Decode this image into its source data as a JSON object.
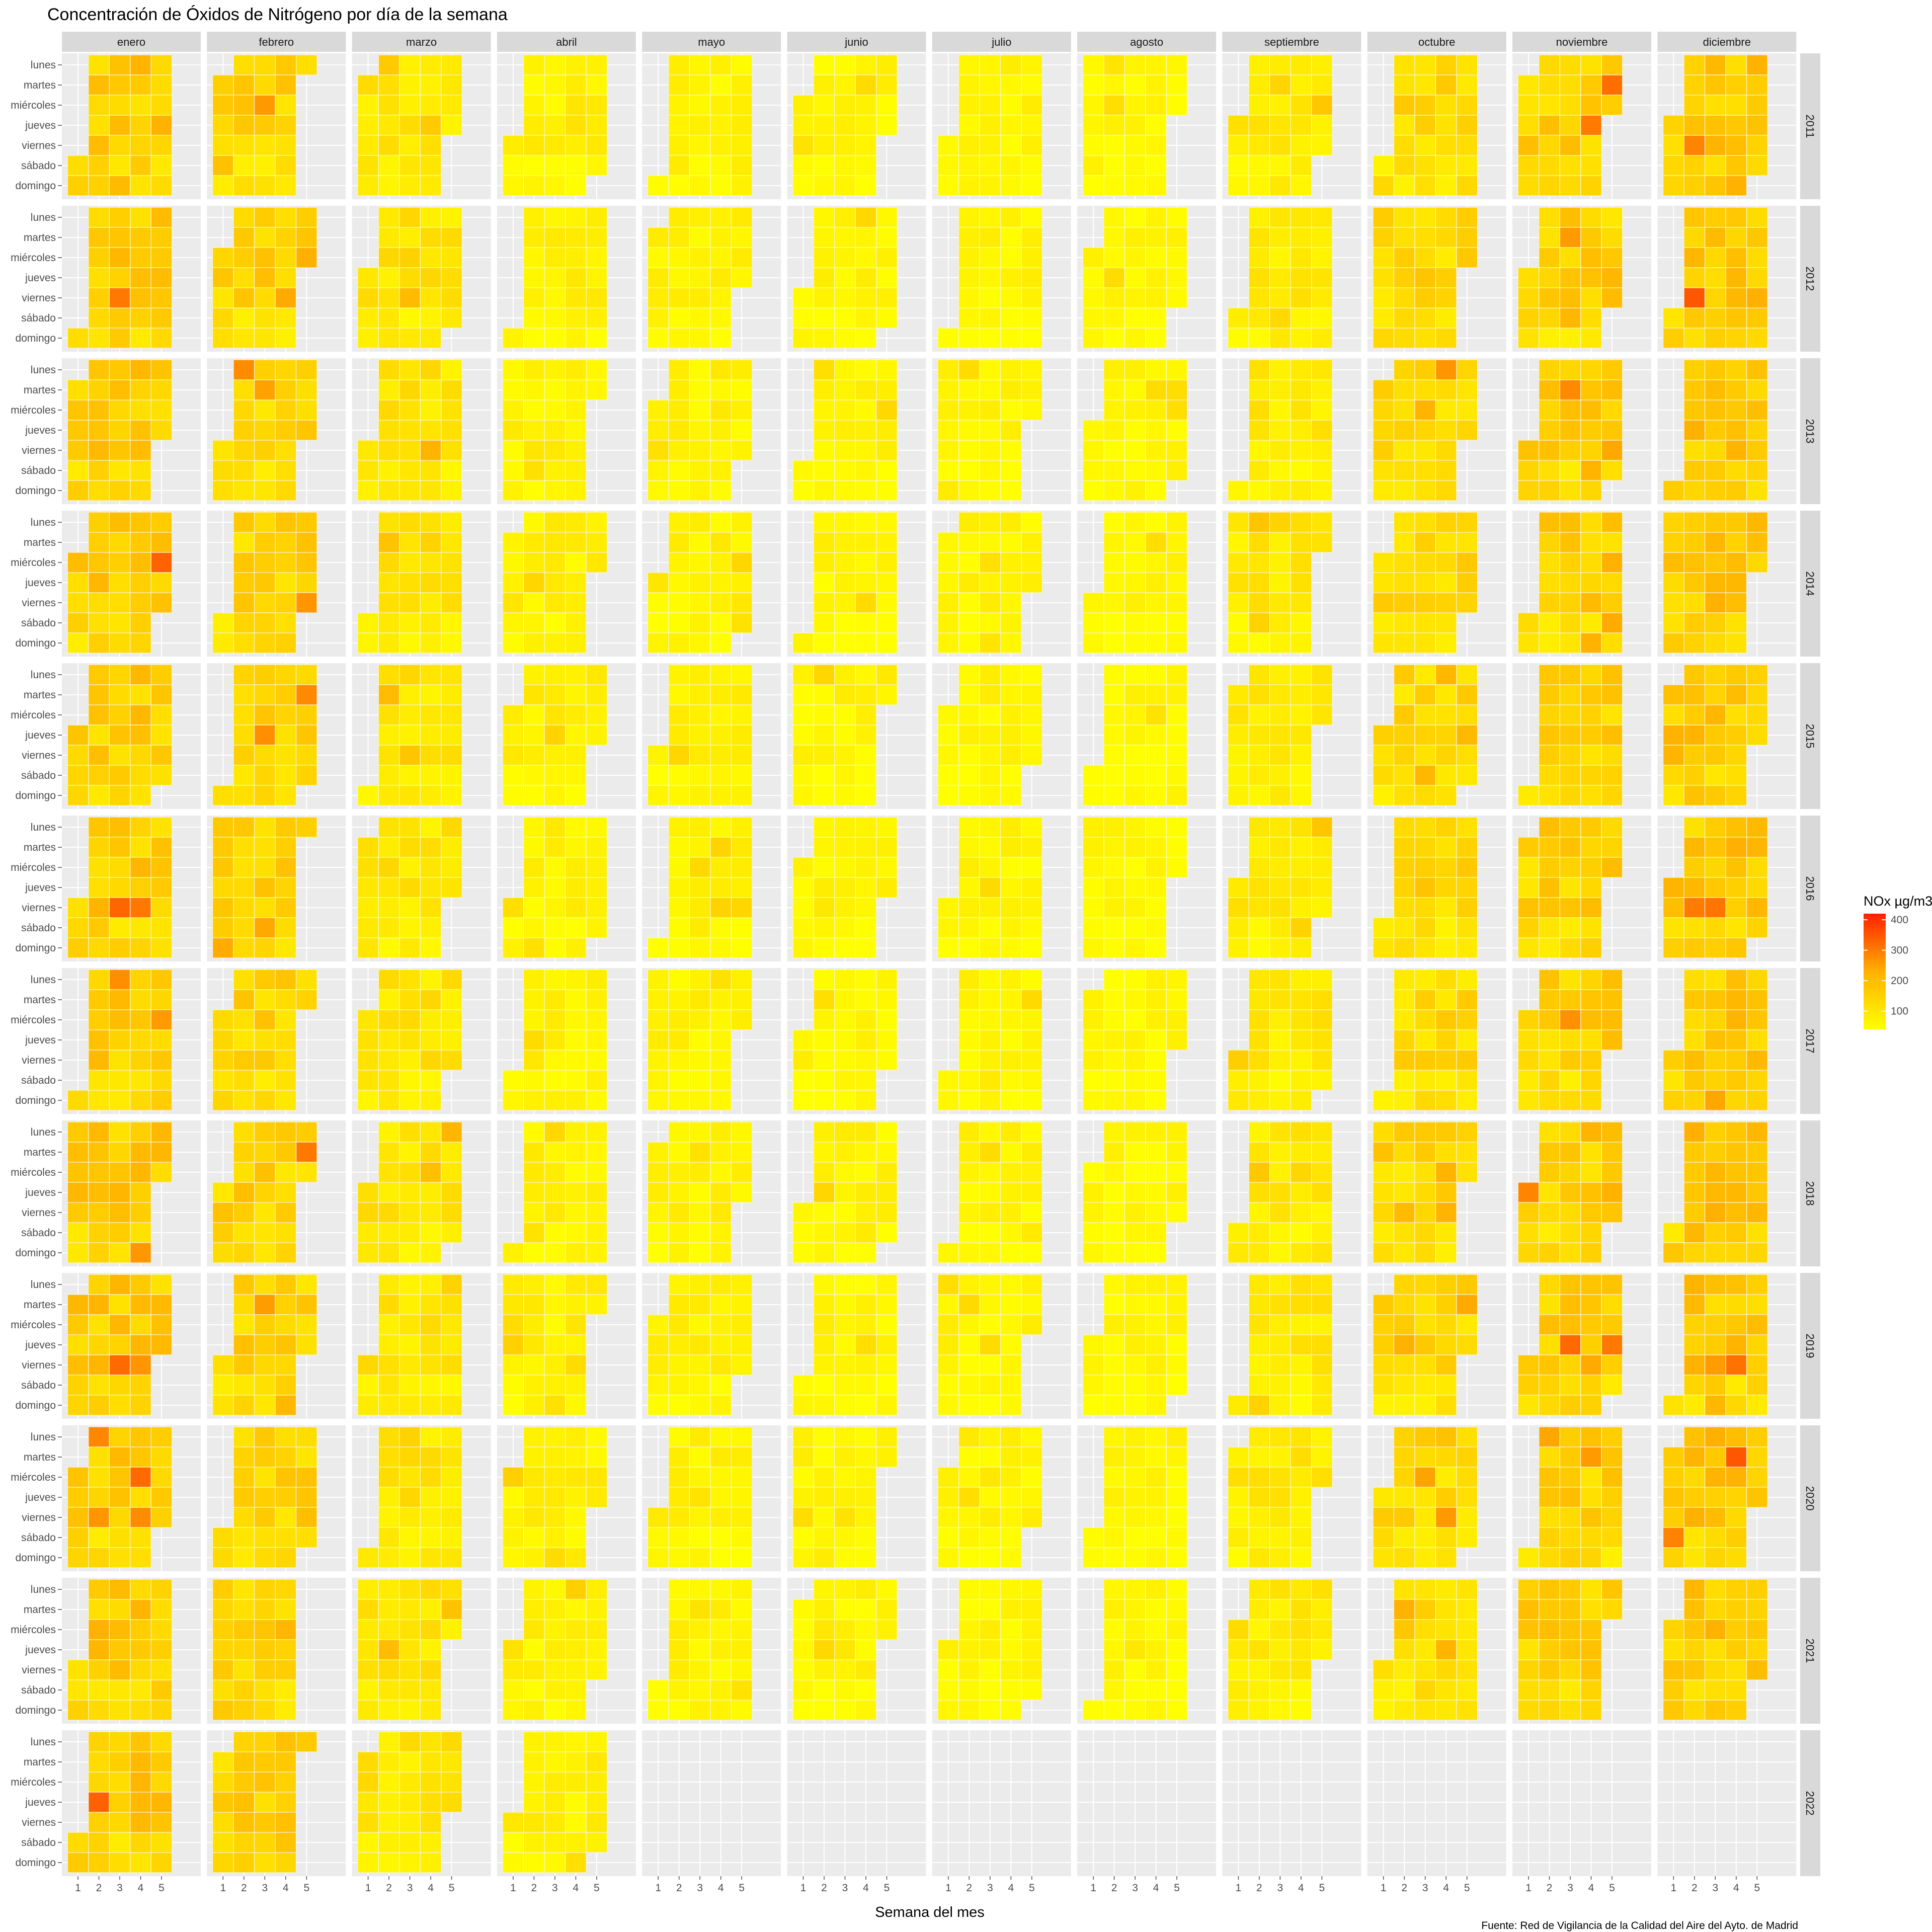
{
  "chart_data": {
    "type": "heatmap",
    "title": "Concentración de Óxidos de Nitrógeno por día de la semana",
    "xlabel": "Semana del mes",
    "caption": "Fuente: Red de Vigilancia de la Calidad del Aire del Ayto. de Madrid",
    "legend": {
      "title": "NOx µg/m3",
      "breaks": [
        100,
        200,
        300,
        400
      ],
      "range": [
        40,
        420
      ],
      "position": "right",
      "colors": {
        "low": "#FFFF00",
        "mid": "#FFB000",
        "high": "#FF2000"
      }
    },
    "months": [
      "enero",
      "febrero",
      "marzo",
      "abril",
      "mayo",
      "junio",
      "julio",
      "agosto",
      "septiembre",
      "octubre",
      "noviembre",
      "diciembre"
    ],
    "years": [
      "2011",
      "2012",
      "2013",
      "2014",
      "2015",
      "2016",
      "2017",
      "2018",
      "2019",
      "2020",
      "2021",
      "2022"
    ],
    "weekdays": [
      "lunes",
      "martes",
      "miércoles",
      "jueves",
      "viernes",
      "sábado",
      "domingo"
    ],
    "weeks": [
      "1",
      "2",
      "3",
      "4",
      "5"
    ],
    "grid": true,
    "note": "Cells: one per calendar day, positioned by (week of month, weekday) in each month/year panel; fill = daily mean NOx µg/m3. 2022 data ends after abril."
  }
}
